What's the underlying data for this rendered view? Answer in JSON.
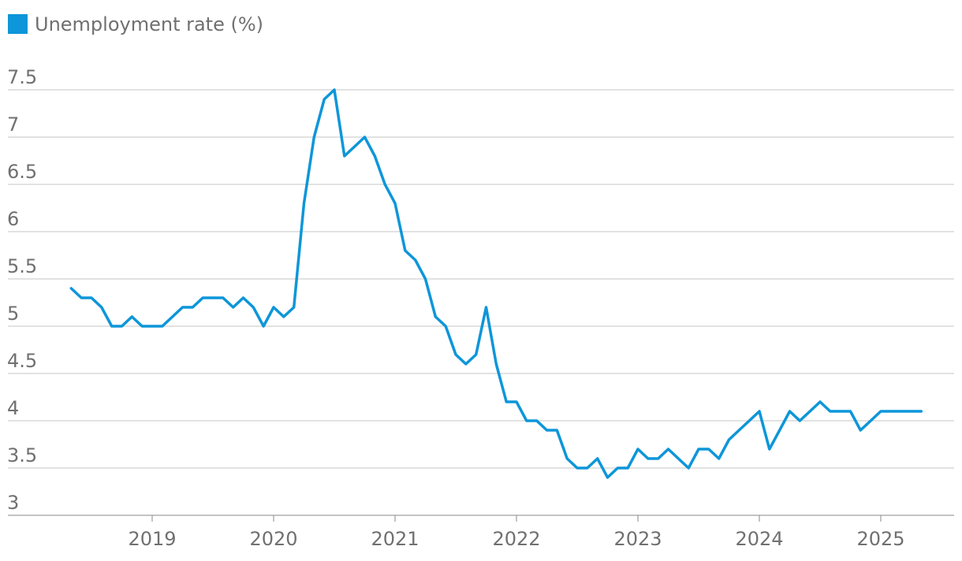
{
  "legend": {
    "label": "Unemployment rate (%)",
    "color": "#0d96d9"
  },
  "chart_data": {
    "type": "line",
    "title": "",
    "xlabel": "",
    "ylabel": "",
    "ylim": [
      3,
      7.5
    ],
    "yticks": [
      3,
      3.5,
      4,
      4.5,
      5,
      5.5,
      6,
      6.5,
      7,
      7.5
    ],
    "ytick_labels": [
      "3",
      "3.5",
      "4",
      "4.5",
      "5",
      "5.5",
      "6",
      "6.5",
      "7",
      "7.5"
    ],
    "xticks": [
      "2019",
      "2020",
      "2021",
      "2022",
      "2023",
      "2024",
      "2025"
    ],
    "grid": "horizontal",
    "legend_position": "top-left",
    "series": [
      {
        "name": "Unemployment rate (%)",
        "color": "#0d96d9",
        "x": [
          "2018-05",
          "2018-06",
          "2018-07",
          "2018-08",
          "2018-09",
          "2018-10",
          "2018-11",
          "2018-12",
          "2019-01",
          "2019-02",
          "2019-03",
          "2019-04",
          "2019-05",
          "2019-06",
          "2019-07",
          "2019-08",
          "2019-09",
          "2019-10",
          "2019-11",
          "2019-12",
          "2020-01",
          "2020-02",
          "2020-03",
          "2020-04",
          "2020-05",
          "2020-06",
          "2020-07",
          "2020-08",
          "2020-09",
          "2020-10",
          "2020-11",
          "2020-12",
          "2021-01",
          "2021-02",
          "2021-03",
          "2021-04",
          "2021-05",
          "2021-06",
          "2021-07",
          "2021-08",
          "2021-09",
          "2021-10",
          "2021-11",
          "2021-12",
          "2022-01",
          "2022-02",
          "2022-03",
          "2022-04",
          "2022-05",
          "2022-06",
          "2022-07",
          "2022-08",
          "2022-09",
          "2022-10",
          "2022-11",
          "2022-12",
          "2023-01",
          "2023-02",
          "2023-03",
          "2023-04",
          "2023-05",
          "2023-06",
          "2023-07",
          "2023-08",
          "2023-09",
          "2023-10",
          "2023-11",
          "2023-12",
          "2024-01",
          "2024-02",
          "2024-03",
          "2024-04",
          "2024-05",
          "2024-06",
          "2024-07",
          "2024-08",
          "2024-09",
          "2024-10",
          "2024-11",
          "2024-12",
          "2025-01",
          "2025-02",
          "2025-03",
          "2025-04",
          "2025-05"
        ],
        "values": [
          5.4,
          5.3,
          5.3,
          5.2,
          5.0,
          5.0,
          5.1,
          5.0,
          5.0,
          5.0,
          5.1,
          5.2,
          5.2,
          5.3,
          5.3,
          5.3,
          5.2,
          5.3,
          5.2,
          5.0,
          5.2,
          5.1,
          5.2,
          6.3,
          7.0,
          7.4,
          7.5,
          6.8,
          6.9,
          7.0,
          6.8,
          6.5,
          6.3,
          5.8,
          5.7,
          5.5,
          5.1,
          5.0,
          4.7,
          4.6,
          4.7,
          5.2,
          4.6,
          4.2,
          4.2,
          4.0,
          4.0,
          3.9,
          3.9,
          3.6,
          3.5,
          3.5,
          3.6,
          3.4,
          3.5,
          3.5,
          3.7,
          3.6,
          3.6,
          3.7,
          3.6,
          3.5,
          3.7,
          3.7,
          3.6,
          3.8,
          3.9,
          4.0,
          4.1,
          3.7,
          3.9,
          4.1,
          4.0,
          4.1,
          4.2,
          4.1,
          4.1,
          4.1,
          3.9,
          4.0,
          4.1,
          4.1,
          4.1,
          4.1,
          4.1
        ]
      }
    ]
  }
}
